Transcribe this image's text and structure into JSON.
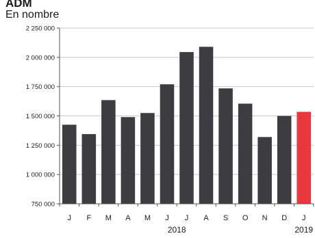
{
  "chart_data": {
    "type": "bar",
    "title": "ADM",
    "unit_label": "En nombre",
    "categories": [
      "J",
      "F",
      "M",
      "A",
      "M",
      "J",
      "J",
      "A",
      "S",
      "O",
      "N",
      "D",
      "J"
    ],
    "values": [
      1425000,
      1345000,
      1635000,
      1490000,
      1525000,
      1770000,
      2045000,
      2090000,
      1735000,
      1605000,
      1320000,
      1500000,
      1535000
    ],
    "year_groups": [
      {
        "label": "2018",
        "start": 0,
        "end": 11
      },
      {
        "label": "2019",
        "start": 12,
        "end": 12
      }
    ],
    "ylim": [
      750000,
      2250000
    ],
    "yticks": [
      750000,
      1000000,
      1250000,
      1500000,
      1750000,
      2000000,
      2250000
    ],
    "ytick_labels": [
      "750 000",
      "1 000 000",
      "1 250 000",
      "1 500 000",
      "1 750 000",
      "2 000 000",
      "2 250 000"
    ],
    "grid": true,
    "colors": {
      "bar": "#3d3c41",
      "highlight": "#e8383d",
      "grid": "#c8c8c8",
      "axis": "#555555"
    },
    "highlight_index": 12
  }
}
